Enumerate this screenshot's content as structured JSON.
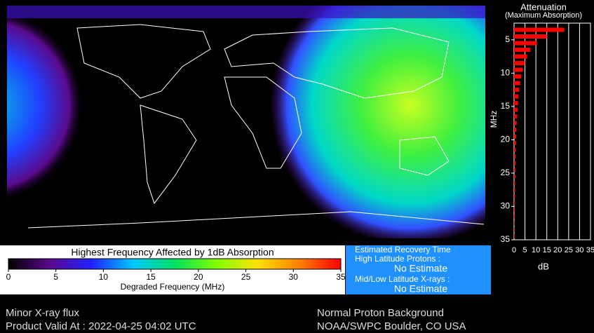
{
  "map": {
    "title": "Highest Frequency Affected by 1dB Absorption",
    "colorbar": {
      "label": "Degraded Frequency (MHz)",
      "lim": [
        0,
        35
      ],
      "ticks": [
        0,
        5,
        10,
        15,
        20,
        25,
        30,
        35
      ],
      "colors": [
        "#000000",
        "#5a0a8c",
        "#2020ff",
        "#00c8ff",
        "#00e060",
        "#80ff00",
        "#ffe000",
        "#ff8000",
        "#ff0000"
      ]
    }
  },
  "recovery": {
    "title": "Estimated Recovery Time",
    "protons_label": "High Latitude Protons :",
    "protons_value": "No Estimate",
    "xray_label": "Mid/Low Latitude X-rays :",
    "xray_value": "No Estimate"
  },
  "footer": {
    "xray": "Minor X-ray flux",
    "valid": "Product Valid At : 2022-04-25 04:02 UTC",
    "proton": "Normal Proton Background",
    "source": "NOAA/SWPC Boulder, CO USA"
  },
  "chart_data": {
    "type": "bar",
    "orientation": "horizontal",
    "title": "Attenuation",
    "subtitle": "(Maximum Absorption)",
    "xlabel": "dB",
    "ylabel": "MHz",
    "color": "#ff0000",
    "grid": true,
    "y": [
      3.5,
      4.5,
      5.5,
      6.5,
      7.5,
      8.5,
      9.5,
      10.5,
      11.5,
      12.5,
      13.5,
      14.5,
      15.5,
      16.5,
      17.5,
      18.5,
      19.5,
      20.5,
      21.5,
      22.5,
      23.5,
      24.5,
      25.5,
      26.5,
      27.5,
      28.5,
      29.5,
      30.5,
      31.5,
      32.5,
      33.5,
      34.5
    ],
    "values": [
      23,
      15,
      10.5,
      7.5,
      6,
      5,
      4,
      3.3,
      2.8,
      2.4,
      2,
      1.8,
      1.6,
      1.4,
      1.2,
      1.1,
      1,
      0.9,
      0.8,
      0.7,
      0.7,
      0.6,
      0.6,
      0.5,
      0.5,
      0.5,
      0.4,
      0.4,
      0.4,
      0.3,
      0.3,
      0.3
    ],
    "xlim": [
      0,
      35
    ],
    "xticks": [
      0,
      5,
      10,
      15,
      20,
      25,
      30,
      35
    ],
    "ylim": [
      2.5,
      35
    ],
    "yticks": [
      5,
      10,
      15,
      20,
      25,
      30,
      35
    ]
  }
}
